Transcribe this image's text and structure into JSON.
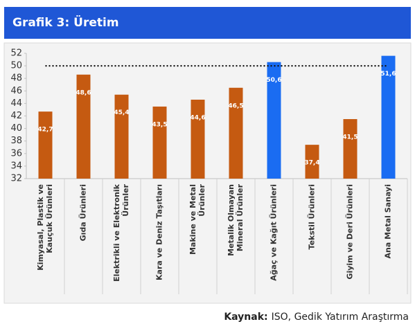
{
  "header": {
    "title": "Grafik 3: Üretim"
  },
  "chart_data": {
    "type": "bar",
    "categories": [
      [
        "Kimyasal, Plastik ve",
        "Kauçuk Ürünleri"
      ],
      [
        "Gıda Ürünleri"
      ],
      [
        "Elektrikli ve Elektronik",
        "Ürünler"
      ],
      [
        "Kara ve Deniz Taşıtları"
      ],
      [
        "Makine ve Metal",
        "Ürünler"
      ],
      [
        "Metalik Olmayan",
        "Mineral Ürünler"
      ],
      [
        "Ağaç ve Kağıt Ürünleri"
      ],
      [
        "Tekstil Ürünleri"
      ],
      [
        "Giyim ve Deri Ürünleri"
      ],
      [
        "Ana Metal Sanayi"
      ]
    ],
    "values": [
      42.7,
      48.6,
      45.4,
      43.5,
      44.6,
      46.5,
      50.6,
      37.4,
      41.5,
      51.6
    ],
    "value_labels": [
      "42,7",
      "48,6",
      "45,4",
      "43,5",
      "44,6",
      "46,5",
      "50,6",
      "37,4",
      "41,5",
      "51,6"
    ],
    "colors": [
      "#c55a11",
      "#c55a11",
      "#c55a11",
      "#c55a11",
      "#c55a11",
      "#c55a11",
      "#1a6cf2",
      "#c55a11",
      "#c55a11",
      "#1a6cf2"
    ],
    "reference_line": 50,
    "ylim": [
      32,
      52
    ],
    "yticks": [
      32,
      34,
      36,
      38,
      40,
      42,
      44,
      46,
      48,
      50,
      52
    ]
  },
  "source": {
    "label": "Kaynak:",
    "text": "ISO, Gedik Yatırım Araştırma"
  }
}
